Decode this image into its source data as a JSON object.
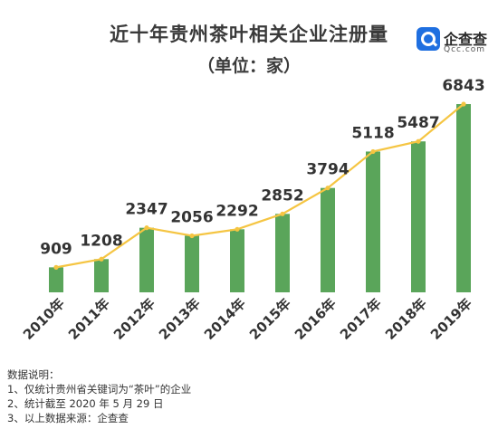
{
  "chart_data": {
    "type": "bar",
    "title": "近十年贵州茶叶相关企业注册量",
    "subtitle": "（单位：家）",
    "categories": [
      "2010年",
      "2011年",
      "2012年",
      "2013年",
      "2014年",
      "2015年",
      "2016年",
      "2017年",
      "2018年",
      "2019年"
    ],
    "values": [
      909,
      1208,
      2347,
      2056,
      2292,
      2852,
      3794,
      5118,
      5487,
      6843
    ],
    "overlay": "line",
    "ylim": [
      0,
      7000
    ],
    "grid": false,
    "legend": "none",
    "colors": {
      "bar": "#5aa55a",
      "line": "#f5c542",
      "marker": "#f5c542"
    }
  },
  "logo": {
    "name": "企查查",
    "domain": "Qcc.com"
  },
  "notes": {
    "heading": "数据说明：",
    "items": [
      "1、仅统计贵州省关键词为“茶叶”的企业",
      "2、统计截至 2020 年 5 月 29 日",
      "3、以上数据来源：企查查"
    ]
  }
}
